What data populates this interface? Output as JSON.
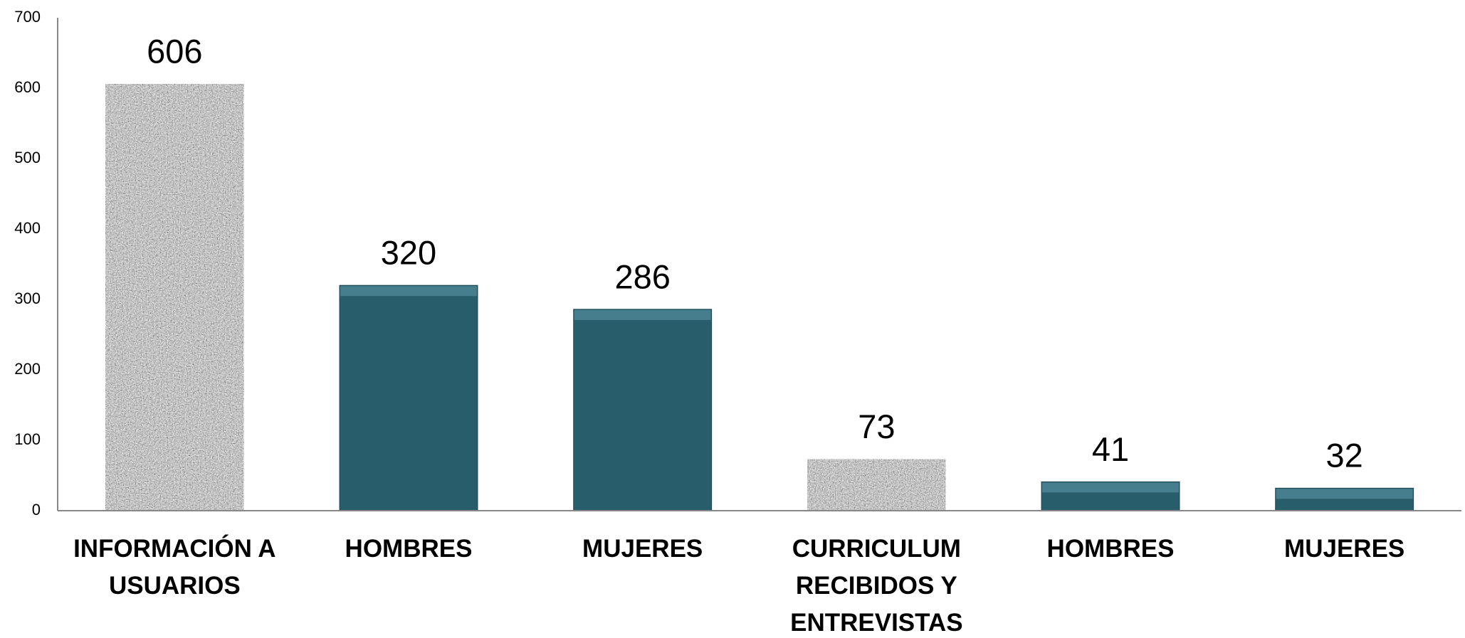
{
  "chart_data": {
    "type": "bar",
    "categories": [
      "INFORMACIÓN A USUARIOS",
      "HOMBRES",
      "MUJERES",
      "CURRICULUM RECIBIDOS Y ENTREVISTAS",
      "HOMBRES",
      "MUJERES"
    ],
    "values": [
      606,
      320,
      286,
      73,
      41,
      32
    ],
    "colors": [
      "#a3a3a3",
      "#285d6c",
      "#285d6c",
      "#a3a3a3",
      "#285d6c",
      "#285d6c"
    ],
    "ylim": [
      0,
      700
    ],
    "yticks": [
      0,
      100,
      200,
      300,
      400,
      500,
      600,
      700
    ],
    "grid": false
  }
}
